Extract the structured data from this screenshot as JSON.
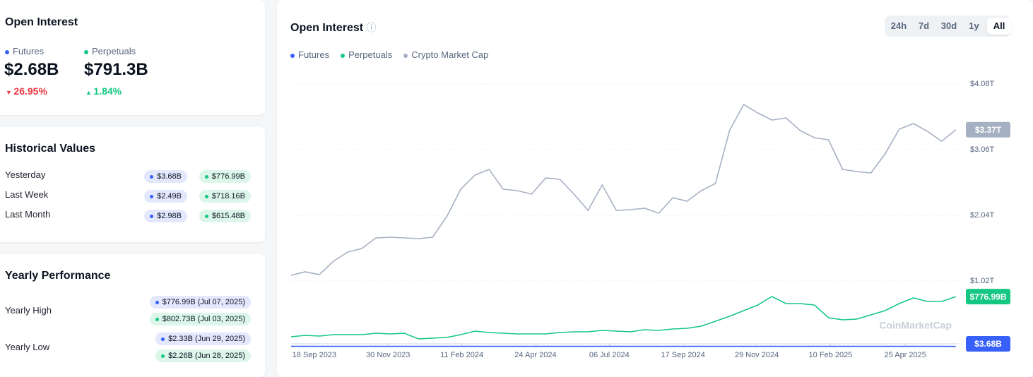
{
  "summary": {
    "title": "Open Interest",
    "futures_label": "Futures",
    "perpetuals_label": "Perpetuals",
    "futures_value": "$2.68B",
    "perpetuals_value": "$791.3B",
    "futures_change": "26.95%",
    "perpetuals_change": "1.84%"
  },
  "historical": {
    "title": "Historical Values",
    "rows": [
      {
        "label": "Yesterday",
        "futures": "$3.68B",
        "perpetuals": "$776.99B"
      },
      {
        "label": "Last Week",
        "futures": "$2.49B",
        "perpetuals": "$718.16B"
      },
      {
        "label": "Last Month",
        "futures": "$2.98B",
        "perpetuals": "$615.48B"
      }
    ]
  },
  "yearly": {
    "title": "Yearly Performance",
    "rows": [
      {
        "label": "Yearly High",
        "futures": "$776.99B (Jul 07, 2025)",
        "perpetuals": "$802.73B (Jul 03, 2025)"
      },
      {
        "label": "Yearly Low",
        "futures": "$2.33B (Jun 29, 2025)",
        "perpetuals": "$2.26B (Jun 28, 2025)"
      }
    ]
  },
  "chart_data": {
    "type": "line",
    "title": "Open Interest",
    "ranges": [
      "24h",
      "7d",
      "30d",
      "1y",
      "All"
    ],
    "selected_range": "All",
    "watermark": "CoinMarketCap",
    "x": [
      "2023-08-26",
      "2023-09-09",
      "2023-09-23",
      "2023-10-07",
      "2023-10-21",
      "2023-11-04",
      "2023-11-18",
      "2023-12-02",
      "2023-12-16",
      "2023-12-30",
      "2024-01-13",
      "2024-01-27",
      "2024-02-10",
      "2024-02-24",
      "2024-03-09",
      "2024-03-23",
      "2024-04-06",
      "2024-04-20",
      "2024-05-04",
      "2024-05-18",
      "2024-06-01",
      "2024-06-15",
      "2024-06-29",
      "2024-07-13",
      "2024-07-27",
      "2024-08-10",
      "2024-08-24",
      "2024-09-07",
      "2024-09-21",
      "2024-10-05",
      "2024-10-19",
      "2024-11-02",
      "2024-11-16",
      "2024-11-30",
      "2024-12-14",
      "2024-12-28",
      "2025-01-11",
      "2025-01-25",
      "2025-02-08",
      "2025-02-22",
      "2025-03-08",
      "2025-03-22",
      "2025-04-05",
      "2025-04-19",
      "2025-05-03",
      "2025-05-17",
      "2025-05-31",
      "2025-06-14"
    ],
    "xlim": [
      "2023-08-26",
      "2025-06-17"
    ],
    "xticks": [
      {
        "value": "2023-09-18",
        "label": "18 Sep 2023"
      },
      {
        "value": "2023-11-30",
        "label": "30 Nov 2023"
      },
      {
        "value": "2024-02-11",
        "label": "11 Feb 2024"
      },
      {
        "value": "2024-04-24",
        "label": "24 Apr 2024"
      },
      {
        "value": "2024-07-06",
        "label": "06 Jul 2024"
      },
      {
        "value": "2024-09-17",
        "label": "17 Sep 2024"
      },
      {
        "value": "2024-11-29",
        "label": "29 Nov 2024"
      },
      {
        "value": "2025-02-10",
        "label": "10 Feb 2025"
      },
      {
        "value": "2025-04-25",
        "label": "25 Apr 2025"
      }
    ],
    "ylim": [
      0,
      4.08
    ],
    "yticks": [
      {
        "value": 1.02,
        "label": "$1.02T"
      },
      {
        "value": 2.04,
        "label": "$2.04T"
      },
      {
        "value": 3.06,
        "label": "$3.06T"
      },
      {
        "value": 4.08,
        "label": "$4.08T"
      }
    ],
    "grid": true,
    "series": [
      {
        "name": "Futures",
        "color": "#3861fb",
        "end_label": "$3.68B",
        "values": [
          0.004,
          0.004,
          0.004,
          0.004,
          0.004,
          0.004,
          0.004,
          0.004,
          0.004,
          0.004,
          0.004,
          0.004,
          0.004,
          0.004,
          0.004,
          0.004,
          0.004,
          0.004,
          0.004,
          0.004,
          0.004,
          0.004,
          0.004,
          0.004,
          0.004,
          0.004,
          0.004,
          0.004,
          0.004,
          0.004,
          0.004,
          0.004,
          0.004,
          0.004,
          0.004,
          0.004,
          0.004,
          0.004,
          0.004,
          0.004,
          0.004,
          0.004,
          0.004,
          0.004,
          0.004,
          0.004,
          0.004,
          0.00368
        ]
      },
      {
        "name": "Perpetuals",
        "color": "#16c784",
        "end_label": "$776.99B",
        "values": [
          0.154,
          0.175,
          0.165,
          0.186,
          0.186,
          0.186,
          0.208,
          0.197,
          0.208,
          0.121,
          0.132,
          0.143,
          0.186,
          0.241,
          0.219,
          0.208,
          0.197,
          0.197,
          0.197,
          0.219,
          0.23,
          0.23,
          0.252,
          0.241,
          0.23,
          0.263,
          0.252,
          0.274,
          0.285,
          0.318,
          0.395,
          0.472,
          0.559,
          0.647,
          0.779,
          0.669,
          0.669,
          0.647,
          0.45,
          0.417,
          0.428,
          0.494,
          0.559,
          0.669,
          0.757,
          0.702,
          0.702,
          0.777
        ]
      },
      {
        "name": "Crypto Market Cap",
        "color": "#a6b0c3",
        "end_label": "$3.37T",
        "values": [
          1.108,
          1.163,
          1.119,
          1.327,
          1.47,
          1.524,
          1.689,
          1.7,
          1.689,
          1.678,
          1.7,
          2.018,
          2.446,
          2.665,
          2.753,
          2.446,
          2.424,
          2.369,
          2.621,
          2.599,
          2.369,
          2.117,
          2.512,
          2.117,
          2.128,
          2.15,
          2.073,
          2.314,
          2.259,
          2.424,
          2.534,
          3.356,
          3.762,
          3.63,
          3.521,
          3.553,
          3.356,
          3.246,
          3.213,
          2.753,
          2.72,
          2.698,
          2.994,
          3.378,
          3.466,
          3.345,
          3.191,
          3.37
        ]
      }
    ]
  }
}
